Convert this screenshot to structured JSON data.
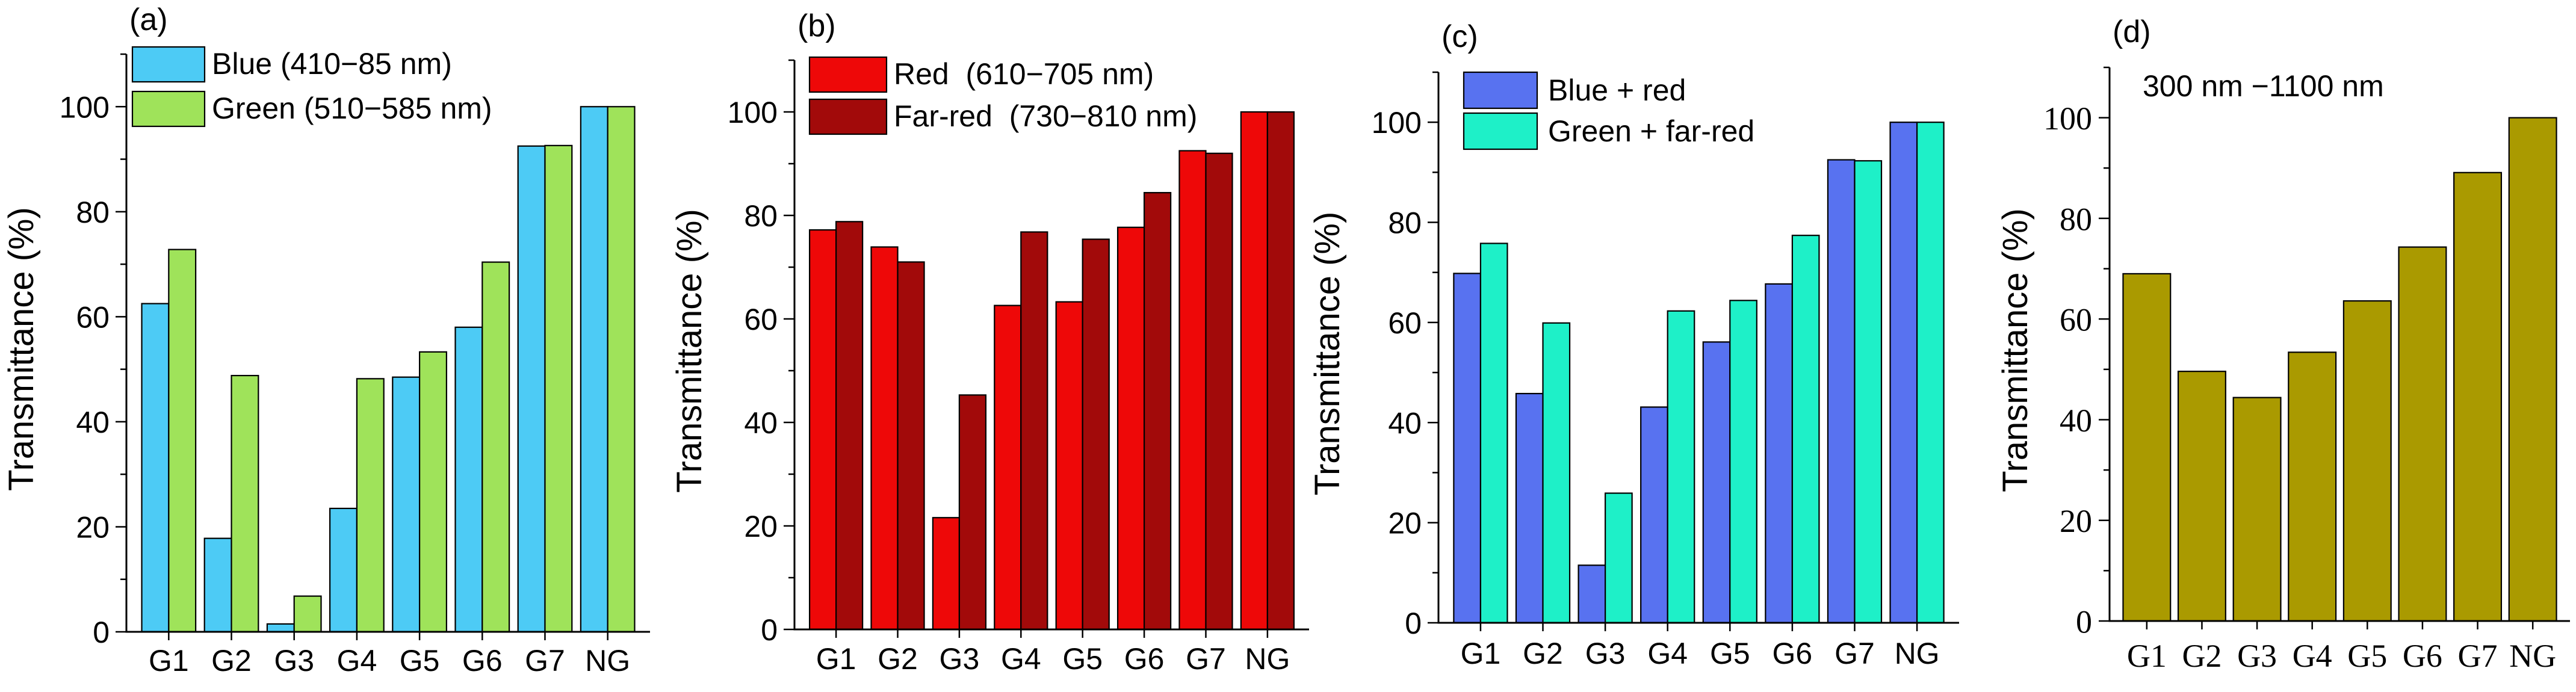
{
  "chart_data": [
    {
      "panel": "(a)",
      "type": "bar",
      "categories": [
        "G1",
        "G2",
        "G3",
        "G4",
        "G5",
        "G6",
        "G7",
        "NG"
      ],
      "ylabel": "Transmittance (%)",
      "xlabel": "",
      "ylim": [
        0,
        110
      ],
      "yticks": [
        0,
        20,
        40,
        60,
        80,
        100
      ],
      "series": [
        {
          "name": "Blue (410−85 nm)",
          "color": "#4dcbf5",
          "values": [
            62.5,
            17.8,
            1.5,
            23.5,
            48.5,
            58.0,
            92.5,
            100
          ]
        },
        {
          "name": "Green (510−585 nm)",
          "color": "#9fe35a",
          "values": [
            72.8,
            48.8,
            6.8,
            48.2,
            53.3,
            70.4,
            92.6,
            100
          ]
        }
      ]
    },
    {
      "panel": "(b)",
      "type": "bar",
      "categories": [
        "G1",
        "G2",
        "G3",
        "G4",
        "G5",
        "G6",
        "G7",
        "NG"
      ],
      "ylabel": "Transmittance (%)",
      "xlabel": "",
      "ylim": [
        0,
        110
      ],
      "yticks": [
        0,
        20,
        40,
        60,
        80,
        100
      ],
      "series": [
        {
          "name": "Red  (610−705 nm)",
          "color": "#ee0808",
          "values": [
            77.2,
            73.9,
            21.6,
            62.6,
            63.3,
            77.7,
            92.5,
            100
          ]
        },
        {
          "name": "Far-red  (730−810 nm)",
          "color": "#a20a0a",
          "values": [
            78.8,
            71.0,
            45.3,
            76.8,
            75.4,
            84.4,
            92.0,
            100
          ]
        }
      ]
    },
    {
      "panel": "(c)",
      "type": "bar",
      "categories": [
        "G1",
        "G2",
        "G3",
        "G4",
        "G5",
        "G6",
        "G7",
        "NG"
      ],
      "ylabel": "Transmittance (%)",
      "xlabel": "",
      "ylim": [
        0,
        110
      ],
      "yticks": [
        0,
        20,
        40,
        60,
        80,
        100
      ],
      "series": [
        {
          "name": "Blue + red",
          "color": "#5872f0",
          "values": [
            69.8,
            45.8,
            11.5,
            43.1,
            56.1,
            67.7,
            92.5,
            100
          ]
        },
        {
          "name": "Green + far-red",
          "color": "#1ef0c8",
          "values": [
            75.8,
            59.9,
            25.9,
            62.3,
            64.4,
            77.4,
            92.3,
            100
          ]
        }
      ]
    },
    {
      "panel": "(d)",
      "type": "bar",
      "title": "300 nm −1100 nm",
      "categories": [
        "G1",
        "G2",
        "G3",
        "G4",
        "G5",
        "G6",
        "G7",
        "NG"
      ],
      "ylabel": "Transmittance (%)",
      "xlabel": "",
      "ylim": [
        0,
        110
      ],
      "yticks": [
        0,
        20,
        40,
        60,
        80,
        100
      ],
      "series": [
        {
          "name": "",
          "color": "#aa9a00",
          "values": [
            69.0,
            49.6,
            44.4,
            53.4,
            63.6,
            74.3,
            89.1,
            100
          ]
        }
      ]
    }
  ]
}
